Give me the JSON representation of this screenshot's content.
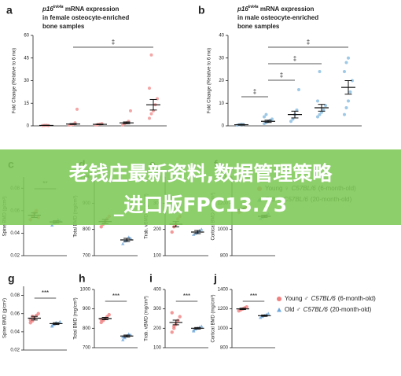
{
  "chart_data": [
    {
      "type": "dot",
      "label": "a",
      "gene": "p16",
      "gene_sup": "Ink4a",
      "title_lines": [
        " mRNA expression",
        "in female osteocyte-enriched",
        "bone samples"
      ],
      "ylabel": "Fold Change (Relative to 6 mo)",
      "ylim": [
        0,
        60
      ],
      "yticks": [
        0,
        15,
        30,
        45,
        60
      ],
      "color": "#f4a6a6",
      "groups": [
        {
          "mean": 0.3,
          "sem": 0.1,
          "points": [
            0.2,
            0.3,
            0.4,
            0.2
          ]
        },
        {
          "mean": 1.2,
          "sem": 0.3,
          "points": [
            0.5,
            0.8,
            1,
            2,
            11
          ]
        },
        {
          "mean": 1,
          "sem": 0.2,
          "points": [
            0.5,
            1,
            1.2,
            1.5
          ]
        },
        {
          "mean": 2,
          "sem": 0.6,
          "points": [
            0.5,
            1.5,
            2,
            3,
            10
          ]
        },
        {
          "mean": 14,
          "sem": 3.5,
          "points": [
            5,
            8,
            10,
            14,
            18,
            25,
            47
          ]
        }
      ],
      "brackets": [
        {
          "text": "‡",
          "from": 1,
          "to": 4
        }
      ]
    },
    {
      "type": "dot",
      "label": "b",
      "gene": "p16",
      "gene_sup": "Ink4a",
      "title_lines": [
        " mRNA expression",
        "in male osteocyte-enriched",
        "bone samples"
      ],
      "ylabel": "Fold Change (Relative to 6 mo)",
      "ylim": [
        0,
        40
      ],
      "yticks": [
        0,
        10,
        20,
        30,
        40
      ],
      "color": "#9ec9e6",
      "groups": [
        {
          "mean": 0.5,
          "sem": 0.2,
          "points": [
            0.3,
            0.5,
            0.7,
            0.6
          ]
        },
        {
          "mean": 2,
          "sem": 0.5,
          "points": [
            1,
            1.5,
            2,
            2.5,
            3,
            4,
            5
          ]
        },
        {
          "mean": 5,
          "sem": 1.5,
          "points": [
            2,
            3,
            5,
            7,
            16
          ]
        },
        {
          "mean": 8,
          "sem": 1.5,
          "points": [
            4,
            5,
            6,
            7,
            9,
            11,
            24
          ]
        },
        {
          "mean": 17,
          "sem": 3,
          "points": [
            5,
            8,
            11,
            15,
            20,
            24,
            28,
            30
          ]
        }
      ],
      "brackets": [
        {
          "text": "‡",
          "from": 1,
          "to": 4
        },
        {
          "text": "‡",
          "from": 1,
          "to": 3
        },
        {
          "text": "‡",
          "from": 1,
          "to": 2
        },
        {
          "text": "‡",
          "from": 0,
          "to": 1
        }
      ]
    },
    {
      "type": "dot",
      "label": "c",
      "ylabel": "Spine BMD (g/cm²)",
      "ylim": [
        0.02,
        0.09
      ],
      "yticks": [
        0.02,
        0.04,
        0.06,
        0.08
      ],
      "colors": [
        "#f08080",
        "#6fa8dc"
      ],
      "groups": [
        {
          "mean": 0.056,
          "sem": 0.002,
          "points": [
            0.052,
            0.055,
            0.058,
            0.06,
            0.054
          ]
        },
        {
          "mean": 0.05,
          "sem": 0.001,
          "points": [
            0.047,
            0.049,
            0.05,
            0.052,
            0.051
          ]
        }
      ],
      "brackets": [
        {
          "text": "**",
          "from": 0,
          "to": 1
        }
      ]
    },
    {
      "type": "dot",
      "label": "d",
      "ylabel": "Total BMD (mg/cm³)",
      "ylim": [
        700,
        1000
      ],
      "yticks": [
        700,
        800,
        900,
        1000
      ],
      "colors": [
        "#f08080",
        "#6fa8dc"
      ],
      "groups": [
        {
          "mean": 830,
          "sem": 8,
          "points": [
            810,
            820,
            830,
            840,
            850
          ]
        },
        {
          "mean": 760,
          "sem": 6,
          "points": [
            745,
            755,
            760,
            770,
            765
          ]
        }
      ]
    },
    {
      "type": "dot",
      "label": "e",
      "ylabel": "Trab. vBMD (mg/cm³)",
      "ylim": [
        100,
        400
      ],
      "yticks": [
        100,
        200,
        300,
        400
      ],
      "colors": [
        "#f08080",
        "#6fa8dc"
      ],
      "groups": [
        {
          "mean": 220,
          "sem": 10,
          "points": [
            190,
            210,
            220,
            240,
            250
          ]
        },
        {
          "mean": 190,
          "sem": 6,
          "points": [
            180,
            185,
            190,
            195,
            200
          ]
        }
      ]
    },
    {
      "type": "dot",
      "label": "f",
      "ylabel": "Cortical BMD (mg/cm³)",
      "ylim": [
        800,
        1400
      ],
      "yticks": [
        800,
        1000,
        1200,
        1400
      ],
      "colors": [
        "#f08080",
        "#6fa8dc"
      ],
      "groups": [
        {
          "mean": 1150,
          "sem": 10,
          "points": [
            1130,
            1140,
            1150,
            1160,
            1170
          ]
        },
        {
          "mean": 1100,
          "sem": 8,
          "points": [
            1080,
            1090,
            1100,
            1110,
            1120
          ]
        }
      ]
    },
    {
      "type": "dot",
      "label": "g",
      "ylabel": "Spine BMD (g/cm²)",
      "ylim": [
        0.02,
        0.09
      ],
      "yticks": [
        0.02,
        0.04,
        0.06,
        0.08
      ],
      "colors": [
        "#f08080",
        "#6fa8dc"
      ],
      "groups": [
        {
          "mean": 0.055,
          "sem": 0.002,
          "points": [
            0.05,
            0.052,
            0.055,
            0.058,
            0.06,
            0.053,
            0.057
          ]
        },
        {
          "mean": 0.049,
          "sem": 0.001,
          "points": [
            0.046,
            0.048,
            0.05,
            0.049,
            0.051,
            0.047
          ]
        }
      ],
      "brackets": [
        {
          "text": "***",
          "from": 0,
          "to": 1
        }
      ]
    },
    {
      "type": "dot",
      "label": "h",
      "ylabel": "Total BMD (mg/cm³)",
      "ylim": [
        700,
        1000
      ],
      "yticks": [
        700,
        800,
        900,
        1000
      ],
      "colors": [
        "#f08080",
        "#6fa8dc"
      ],
      "groups": [
        {
          "mean": 850,
          "sem": 6,
          "points": [
            830,
            840,
            850,
            860,
            870,
            845
          ]
        },
        {
          "mean": 760,
          "sem": 5,
          "points": [
            740,
            750,
            760,
            770,
            765,
            755
          ]
        }
      ],
      "brackets": [
        {
          "text": "***",
          "from": 0,
          "to": 1
        }
      ]
    },
    {
      "type": "dot",
      "label": "i",
      "ylabel": "Trab. vBMD (mg/cm³)",
      "ylim": [
        100,
        400
      ],
      "yticks": [
        100,
        200,
        300,
        400
      ],
      "colors": [
        "#f08080",
        "#6fa8dc"
      ],
      "groups": [
        {
          "mean": 230,
          "sem": 12,
          "points": [
            180,
            200,
            220,
            240,
            260,
            280,
            210
          ]
        },
        {
          "mean": 200,
          "sem": 4,
          "points": [
            185,
            195,
            200,
            205,
            210,
            190
          ]
        }
      ],
      "brackets": [
        {
          "text": "***",
          "from": 0,
          "to": 1
        }
      ]
    },
    {
      "type": "dot",
      "label": "j",
      "ylabel": "Cortical BMD (mg/cm³)",
      "ylim": [
        800,
        1400
      ],
      "yticks": [
        800,
        1000,
        1200,
        1400
      ],
      "colors": [
        "#f08080",
        "#6fa8dc"
      ],
      "groups": [
        {
          "mean": 1200,
          "sem": 7,
          "points": [
            1180,
            1190,
            1200,
            1210,
            1220
          ]
        },
        {
          "mean": 1130,
          "sem": 7,
          "points": [
            1110,
            1120,
            1130,
            1140,
            1150
          ]
        }
      ],
      "brackets": [
        {
          "text": "***",
          "from": 0,
          "to": 1
        }
      ]
    }
  ],
  "legends": [
    [
      {
        "name": "Young ♀",
        "strain": "C57BL/6",
        "age": "(6-month-old)",
        "color": "#f08080"
      },
      {
        "name": "Old ♀",
        "strain": "C57BL/6",
        "age": "(20-month-old)",
        "color": "#6fa8dc"
      }
    ],
    [
      {
        "name": "Young ♂",
        "strain": "C57BL/6",
        "age": "(6-month-old)",
        "color": "#f08080"
      },
      {
        "name": "Old ♂",
        "strain": "C57BL/6",
        "age": "(20-month-old)",
        "color": "#6fa8dc"
      }
    ]
  ],
  "overlay": {
    "lines": [
      "老钱庄最新资料,数据管理策略",
      "_进口版FPC13.73"
    ]
  }
}
